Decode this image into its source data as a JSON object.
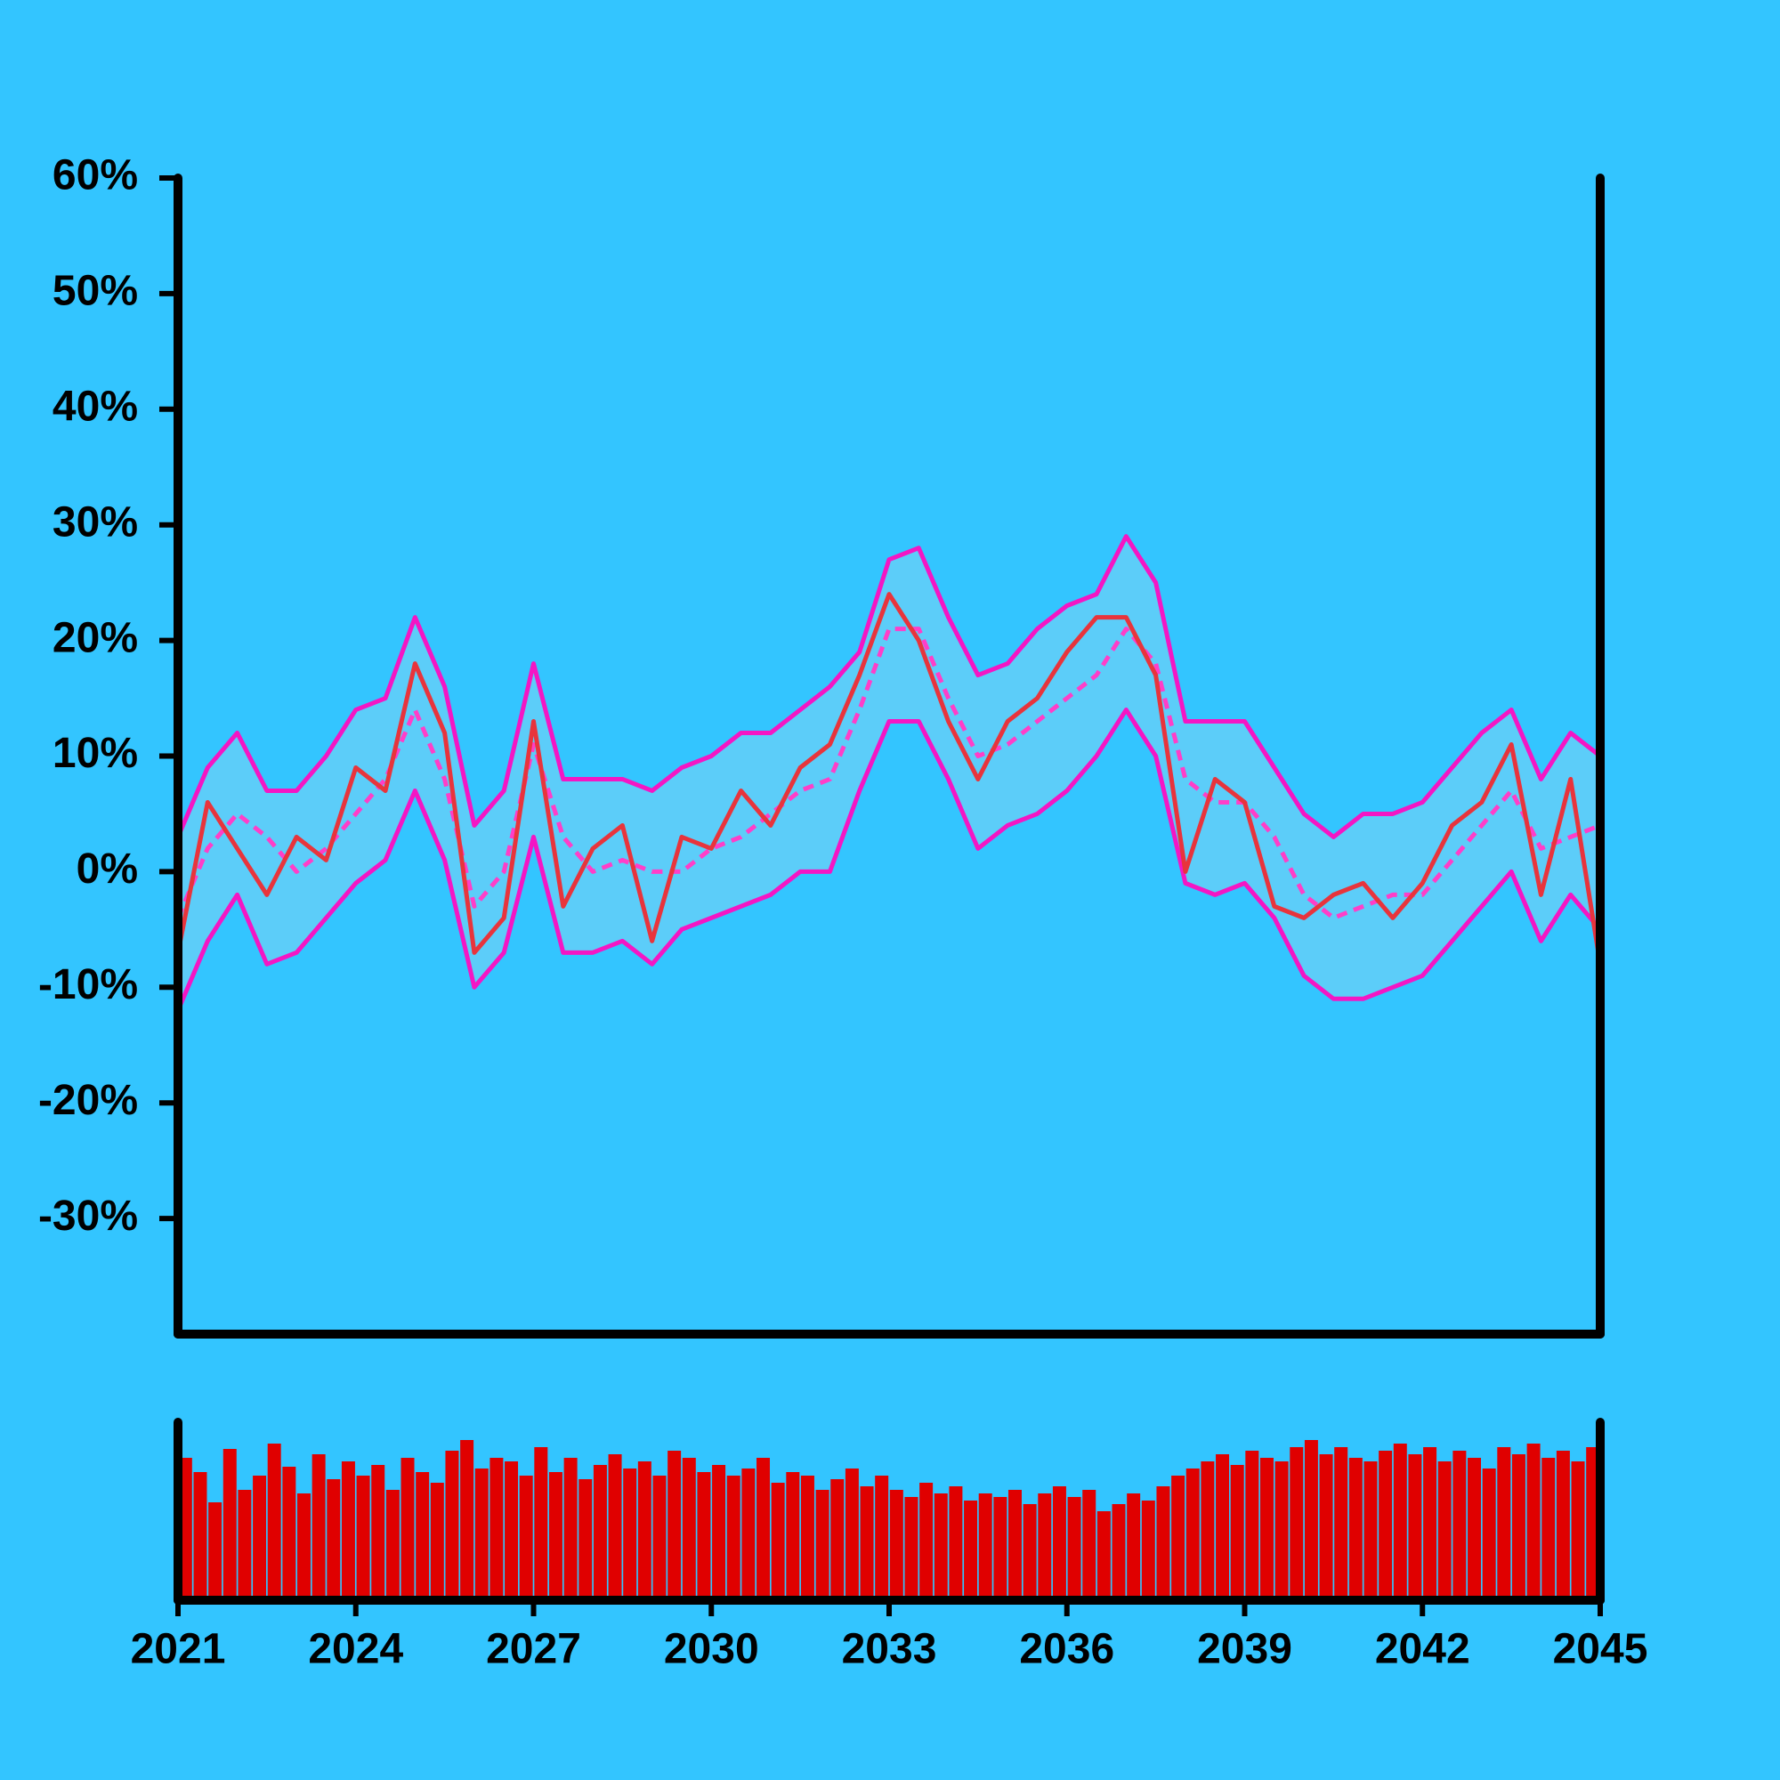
{
  "chart_data": [
    {
      "type": "line",
      "x": [
        2021,
        2021.5,
        2022,
        2022.5,
        2023,
        2023.5,
        2024,
        2024.5,
        2025,
        2025.5,
        2026,
        2026.5,
        2027,
        2027.5,
        2028,
        2028.5,
        2029,
        2029.5,
        2030,
        2030.5,
        2031,
        2031.5,
        2032,
        2032.5,
        2033,
        2033.5,
        2034,
        2034.5,
        2035,
        2035.5,
        2036,
        2036.5,
        2037,
        2037.5,
        2038,
        2038.5,
        2039,
        2039.5,
        2040,
        2040.5,
        2041,
        2041.5,
        2042,
        2042.5,
        2043,
        2043.5,
        2044,
        2044.5,
        2045
      ],
      "series": [
        {
          "color": "#e8343c",
          "values": [
            -7,
            6,
            2,
            -2,
            3,
            1,
            9,
            7,
            18,
            12,
            -7,
            -4,
            13,
            -3,
            2,
            4,
            -6,
            3,
            2,
            7,
            4,
            9,
            11,
            17,
            24,
            20,
            13,
            8,
            13,
            15,
            19,
            22,
            22,
            17,
            0,
            8,
            6,
            -3,
            -4,
            -2,
            -1,
            -4,
            -1,
            4,
            6,
            11,
            -2,
            8,
            -8
          ]
        },
        {
          "color": "#f416c4",
          "band": "upper",
          "values": [
            3,
            9,
            12,
            7,
            7,
            10,
            14,
            15,
            22,
            16,
            4,
            7,
            18,
            8,
            8,
            8,
            7,
            9,
            10,
            12,
            12,
            14,
            16,
            19,
            27,
            28,
            22,
            17,
            18,
            21,
            23,
            24,
            29,
            25,
            13,
            13,
            13,
            9,
            5,
            3,
            5,
            5,
            6,
            9,
            12,
            14,
            8,
            12,
            10
          ]
        },
        {
          "color": "#ff3ec8",
          "dash": "dashed",
          "values": [
            -4,
            2,
            5,
            3,
            0,
            2,
            5,
            8,
            14,
            8,
            -3,
            0,
            11,
            3,
            0,
            1,
            0,
            0,
            2,
            3,
            5,
            7,
            8,
            14,
            21,
            21,
            15,
            10,
            11,
            13,
            15,
            17,
            21,
            18,
            8,
            6,
            6,
            3,
            -2,
            -4,
            -3,
            -2,
            -2,
            1,
            4,
            7,
            2,
            3,
            4
          ]
        },
        {
          "color": "#f416c4",
          "band": "lower",
          "values": [
            -12,
            -6,
            -2,
            -8,
            -7,
            -4,
            -1,
            1,
            7,
            1,
            -10,
            -7,
            3,
            -7,
            -7,
            -6,
            -8,
            -5,
            -4,
            -3,
            -2,
            0,
            0,
            7,
            13,
            13,
            8,
            2,
            4,
            5,
            7,
            10,
            14,
            10,
            -1,
            -2,
            -1,
            -4,
            -9,
            -11,
            -11,
            -10,
            -9,
            -6,
            -3,
            0,
            -6,
            -2,
            -5
          ]
        }
      ],
      "band_color": "#5ccdf9",
      "xlim": [
        2021,
        2045
      ],
      "ylim": [
        -40,
        60
      ],
      "yticks": [
        {
          "value": 60,
          "label": "60%"
        },
        {
          "value": 50,
          "label": "50%"
        },
        {
          "value": 40,
          "label": "40%"
        },
        {
          "value": 30,
          "label": "30%"
        },
        {
          "value": 20,
          "label": "20%"
        },
        {
          "value": 10,
          "label": "10%"
        },
        {
          "value": 0,
          "label": "0%"
        },
        {
          "value": -10,
          "label": "-10%"
        },
        {
          "value": -20,
          "label": "-20%"
        },
        {
          "value": -30,
          "label": "-30%"
        }
      ],
      "grid": false
    },
    {
      "type": "bar",
      "x": [
        2021.125,
        2021.375,
        2021.625,
        2021.875,
        2022.125,
        2022.375,
        2022.625,
        2022.875,
        2023.125,
        2023.375,
        2023.625,
        2023.875,
        2024.125,
        2024.375,
        2024.625,
        2024.875,
        2025.125,
        2025.375,
        2025.625,
        2025.875,
        2026.125,
        2026.375,
        2026.625,
        2026.875,
        2027.125,
        2027.375,
        2027.625,
        2027.875,
        2028.125,
        2028.375,
        2028.625,
        2028.875,
        2029.125,
        2029.375,
        2029.625,
        2029.875,
        2030.125,
        2030.375,
        2030.625,
        2030.875,
        2031.125,
        2031.375,
        2031.625,
        2031.875,
        2032.125,
        2032.375,
        2032.625,
        2032.875,
        2033.125,
        2033.375,
        2033.625,
        2033.875,
        2034.125,
        2034.375,
        2034.625,
        2034.875,
        2035.125,
        2035.375,
        2035.625,
        2035.875,
        2036.125,
        2036.375,
        2036.625,
        2036.875,
        2037.125,
        2037.375,
        2037.625,
        2037.875,
        2038.125,
        2038.375,
        2038.625,
        2038.875,
        2039.125,
        2039.375,
        2039.625,
        2039.875,
        2040.125,
        2040.375,
        2040.625,
        2040.875,
        2041.125,
        2041.375,
        2041.625,
        2041.875,
        2042.125,
        2042.375,
        2042.625,
        2042.875,
        2043.125,
        2043.375,
        2043.625,
        2043.875,
        2044.125,
        2044.375,
        2044.625,
        2044.875
      ],
      "values": [
        80,
        72,
        55,
        85,
        62,
        70,
        88,
        75,
        60,
        82,
        68,
        78,
        70,
        76,
        62,
        80,
        72,
        66,
        84,
        90,
        74,
        80,
        78,
        70,
        86,
        72,
        80,
        68,
        76,
        82,
        74,
        78,
        70,
        84,
        80,
        72,
        76,
        70,
        74,
        80,
        66,
        72,
        70,
        62,
        68,
        74,
        64,
        70,
        62,
        58,
        66,
        60,
        64,
        56,
        60,
        58,
        62,
        54,
        60,
        64,
        58,
        62,
        50,
        54,
        60,
        56,
        64,
        70,
        74,
        78,
        82,
        76,
        84,
        80,
        78,
        86,
        90,
        82,
        86,
        80,
        78,
        84,
        88,
        82,
        86,
        78,
        84,
        80,
        74,
        86,
        82,
        88,
        80,
        84,
        78,
        86
      ],
      "color": "#e00000",
      "xlim": [
        2021,
        2045
      ],
      "ylim": [
        0,
        100
      ],
      "xticks": [
        2021,
        2024,
        2027,
        2030,
        2033,
        2036,
        2039,
        2042,
        2045
      ]
    }
  ]
}
